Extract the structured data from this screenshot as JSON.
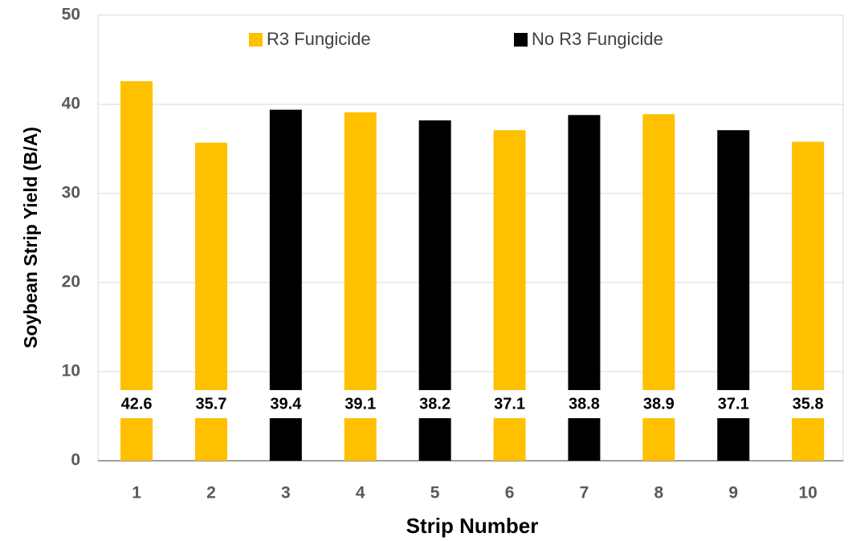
{
  "chart_data": {
    "type": "bar",
    "x_label": "Strip Number",
    "y_label": "Soybean Strip Yield (B/A)",
    "categories": [
      "1",
      "2",
      "3",
      "4",
      "5",
      "6",
      "7",
      "8",
      "9",
      "10"
    ],
    "series": [
      {
        "name": "R3 Fungicide",
        "color": "#ffc000",
        "values": [
          42.6,
          35.7,
          null,
          39.1,
          null,
          37.1,
          null,
          38.9,
          null,
          35.8
        ]
      },
      {
        "name": "No R3 Fungicide",
        "color": "#000000",
        "values": [
          null,
          null,
          39.4,
          null,
          38.2,
          null,
          38.8,
          null,
          37.1,
          null
        ]
      }
    ],
    "ylim": [
      0,
      50
    ],
    "yticks": [
      0,
      10,
      20,
      30,
      40,
      50
    ],
    "grid": true
  }
}
